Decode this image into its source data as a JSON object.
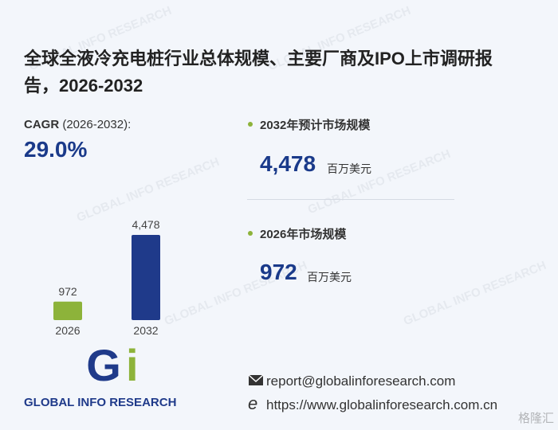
{
  "header": {
    "title": "全球全液冷充电桩行业总体规模、主要厂商及IPO上市调研报告，2026-2032"
  },
  "cagr": {
    "label": "CAGR",
    "period": "(2026-2032):",
    "value": "29.0%"
  },
  "stats": [
    {
      "label": "2032年预计市场规模",
      "value": "4,478",
      "unit": "百万美元"
    },
    {
      "label": "2026年市场规模",
      "value": "972",
      "unit": "百万美元"
    }
  ],
  "chart_data": {
    "type": "bar",
    "categories": [
      "2026",
      "2032"
    ],
    "values": [
      972,
      4478
    ],
    "value_labels": [
      "972",
      "4,478"
    ],
    "colors": [
      "#8db33a",
      "#1f3a8a"
    ]
  },
  "logo": {
    "text": "GLOBAL INFO RESEARCH"
  },
  "contact": {
    "email": "report@globalinforesearch.com",
    "website": "https://www.globalinforesearch.com.cn"
  },
  "watermark": {
    "text": "GLOBAL INFO RESEARCH",
    "corner": "格隆汇"
  }
}
